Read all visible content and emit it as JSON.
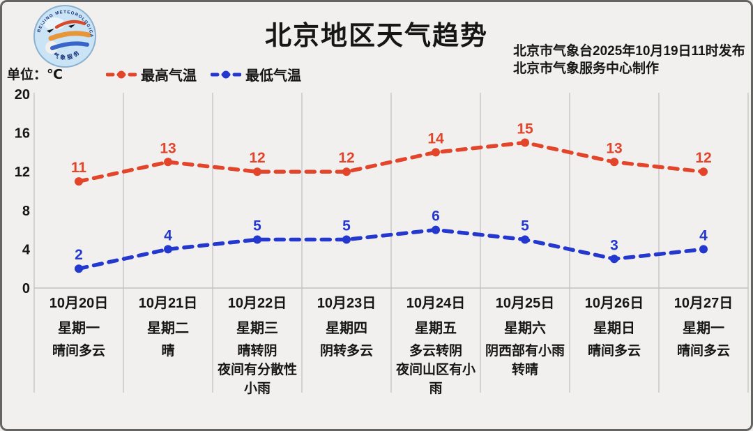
{
  "header": {
    "title": "北京地区天气趋势",
    "issued_line1": "北京市气象台2025年10月19日11时发布",
    "issued_line2": "北京市气象服务中心制作",
    "unit_label": "单位：℃",
    "logo_ring_text_top": "BEIJING METEOROLOGICAL SERVICE",
    "logo_ring_text_bottom": "气象服务"
  },
  "chart_data": {
    "type": "line",
    "title": "北京地区天气趋势",
    "line_style": "dashed-with-dot-markers",
    "legend_position": "top-left",
    "grid": "vertical-column-separators-only",
    "ylim": [
      0,
      20
    ],
    "yticks": [
      20,
      16,
      12,
      8,
      4,
      0
    ],
    "categories": [
      "10月20日",
      "10月21日",
      "10月22日",
      "10月23日",
      "10月24日",
      "10月25日",
      "10月26日",
      "10月27日"
    ],
    "weekdays": [
      "星期一",
      "星期二",
      "星期三",
      "星期四",
      "星期五",
      "星期六",
      "星期日",
      "星期一"
    ],
    "weather": [
      [
        "晴间多云"
      ],
      [
        "晴"
      ],
      [
        "晴转阴",
        "夜间有分散性",
        "小雨"
      ],
      [
        "阴转多云"
      ],
      [
        "多云转阴",
        "夜间山区有小",
        "雨"
      ],
      [
        "阴西部有小雨",
        "转晴"
      ],
      [
        "晴间多云"
      ],
      [
        "晴间多云"
      ]
    ],
    "series": [
      {
        "name": "最高气温",
        "color": "#e2452a",
        "values": [
          11,
          13,
          12,
          12,
          14,
          15,
          13,
          12
        ]
      },
      {
        "name": "最低气温",
        "color": "#2438cd",
        "values": [
          2,
          4,
          5,
          5,
          6,
          5,
          3,
          4
        ]
      }
    ],
    "colors": {
      "background": "#f1f0ee",
      "grid_line": "#cccbc9",
      "baseline": "#c2c1bf",
      "text": "#161616"
    }
  }
}
